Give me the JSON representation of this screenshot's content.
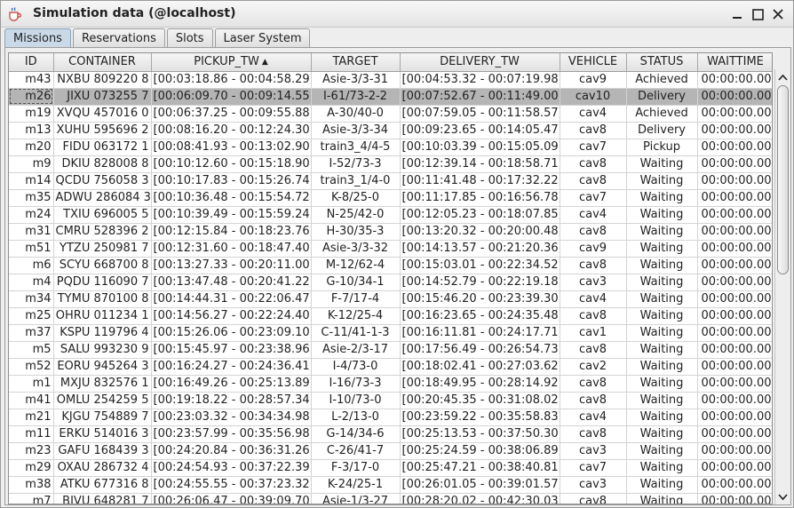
{
  "window": {
    "title": "Simulation data (@localhost)",
    "app_icon": "java-cup-icon",
    "controls": [
      "minimize-icon",
      "maximize-icon",
      "close-icon"
    ]
  },
  "tabs": [
    {
      "label": "Missions",
      "active": true
    },
    {
      "label": "Reservations",
      "active": false
    },
    {
      "label": "Slots",
      "active": false
    },
    {
      "label": "Laser System",
      "active": false
    }
  ],
  "table": {
    "columns": [
      "ID",
      "CONTAINER",
      "PICKUP_TW",
      "TARGET",
      "DELIVERY_TW",
      "VEHICLE",
      "STATUS",
      "WAITTIME"
    ],
    "sorted_column": "PICKUP_TW",
    "sort_icon": "sort-ascending-icon",
    "selected_row": 1,
    "rows": [
      [
        "m43",
        "NXBU 809220 8",
        "[00:03:18.86 - 00:04:58.29]",
        "Asie-3/3-31",
        "[00:04:53.32 - 00:07:19.98]",
        "cav9",
        "Achieved",
        "00:00:00.00"
      ],
      [
        "m26",
        "JIXU 073255 7",
        "[00:06:09.70 - 00:09:14.55]",
        "I-61/73-2-2",
        "[00:07:52.67 - 00:11:49.00]",
        "cav10",
        "Delivery",
        "00:00:00.00"
      ],
      [
        "m19",
        "XVQU 457016 0",
        "[00:06:37.25 - 00:09:55.88]",
        "A-30/40-0",
        "[00:07:59.05 - 00:11:58.57]",
        "cav4",
        "Achieved",
        "00:00:00.00"
      ],
      [
        "m13",
        "XUHU 595696 2",
        "[00:08:16.20 - 00:12:24.30]",
        "Asie-3/3-34",
        "[00:09:23.65 - 00:14:05.47]",
        "cav8",
        "Delivery",
        "00:00:00.00"
      ],
      [
        "m20",
        "FIDU 063172 1",
        "[00:08:41.93 - 00:13:02.90]",
        "train3_4/4-5",
        "[00:10:03.39 - 00:15:05.09]",
        "cav7",
        "Pickup",
        "00:00:00.00"
      ],
      [
        "m9",
        "DKIU 828008 8",
        "[00:10:12.60 - 00:15:18.90]",
        "I-52/73-3",
        "[00:12:39.14 - 00:18:58.71]",
        "cav8",
        "Waiting",
        "00:00:00.00"
      ],
      [
        "m14",
        "QCDU 756058 3",
        "[00:10:17.83 - 00:15:26.74]",
        "train3_1/4-0",
        "[00:11:41.48 - 00:17:32.22]",
        "cav8",
        "Waiting",
        "00:00:00.00"
      ],
      [
        "m35",
        "ADWU 286084 3",
        "[00:10:36.48 - 00:15:54.72]",
        "K-8/25-0",
        "[00:11:17.85 - 00:16:56.78]",
        "cav7",
        "Waiting",
        "00:00:00.00"
      ],
      [
        "m24",
        "TXIU 696005 5",
        "[00:10:39.49 - 00:15:59.24]",
        "N-25/42-0",
        "[00:12:05.23 - 00:18:07.85]",
        "cav4",
        "Waiting",
        "00:00:00.00"
      ],
      [
        "m31",
        "CMRU 528396 2",
        "[00:12:15.84 - 00:18:23.76]",
        "H-30/35-3",
        "[00:13:20.32 - 00:20:00.48]",
        "cav8",
        "Waiting",
        "00:00:00.00"
      ],
      [
        "m51",
        "YTZU 250981 7",
        "[00:12:31.60 - 00:18:47.40]",
        "Asie-3/3-32",
        "[00:14:13.57 - 00:21:20.36]",
        "cav9",
        "Waiting",
        "00:00:00.00"
      ],
      [
        "m6",
        "SCYU 668700 8",
        "[00:13:27.33 - 00:20:11.00]",
        "M-12/62-4",
        "[00:15:03.01 - 00:22:34.52]",
        "cav8",
        "Waiting",
        "00:00:00.00"
      ],
      [
        "m4",
        "PQDU 116090 7",
        "[00:13:47.48 - 00:20:41.22]",
        "G-10/34-1",
        "[00:14:52.79 - 00:22:19.18]",
        "cav3",
        "Waiting",
        "00:00:00.00"
      ],
      [
        "m34",
        "TYMU 870100 8",
        "[00:14:44.31 - 00:22:06.47]",
        "F-7/17-4",
        "[00:15:46.20 - 00:23:39.30]",
        "cav4",
        "Waiting",
        "00:00:00.00"
      ],
      [
        "m25",
        "OHRU 011234 1",
        "[00:14:56.27 - 00:22:24.40]",
        "K-12/25-4",
        "[00:16:23.65 - 00:24:35.48]",
        "cav8",
        "Waiting",
        "00:00:00.00"
      ],
      [
        "m37",
        "KSPU 119796 4",
        "[00:15:26.06 - 00:23:09.10]",
        "C-11/41-1-3",
        "[00:16:11.81 - 00:24:17.71]",
        "cav1",
        "Waiting",
        "00:00:00.00"
      ],
      [
        "m5",
        "SALU 993230 9",
        "[00:15:45.97 - 00:23:38.96]",
        "Asie-2/3-17",
        "[00:17:56.49 - 00:26:54.73]",
        "cav8",
        "Waiting",
        "00:00:00.00"
      ],
      [
        "m52",
        "EORU 945264 3",
        "[00:16:24.27 - 00:24:36.41]",
        "I-4/73-0",
        "[00:18:02.41 - 00:27:03.62]",
        "cav2",
        "Waiting",
        "00:00:00.00"
      ],
      [
        "m1",
        "MXJU 832576 1",
        "[00:16:49.26 - 00:25:13.89]",
        "I-16/73-3",
        "[00:18:49.95 - 00:28:14.92]",
        "cav8",
        "Waiting",
        "00:00:00.00"
      ],
      [
        "m41",
        "OMLU 254259 5",
        "[00:19:18.22 - 00:28:57.34]",
        "I-10/73-0",
        "[00:20:45.35 - 00:31:08.02]",
        "cav8",
        "Waiting",
        "00:00:00.00"
      ],
      [
        "m21",
        "KJGU 754889 7",
        "[00:23:03.32 - 00:34:34.98]",
        "L-2/13-0",
        "[00:23:59.22 - 00:35:58.83]",
        "cav4",
        "Waiting",
        "00:00:00.00"
      ],
      [
        "m11",
        "ERKU 514016 3",
        "[00:23:57.99 - 00:35:56.98]",
        "G-14/34-6",
        "[00:25:13.53 - 00:37:50.30]",
        "cav8",
        "Waiting",
        "00:00:00.00"
      ],
      [
        "m23",
        "GAFU 168439 3",
        "[00:24:20.84 - 00:36:31.26]",
        "C-26/41-7",
        "[00:25:24.59 - 00:38:06.89]",
        "cav3",
        "Waiting",
        "00:00:00.00"
      ],
      [
        "m29",
        "OXAU 286732 4",
        "[00:24:54.93 - 00:37:22.39]",
        "F-3/17-0",
        "[00:25:47.21 - 00:38:40.81]",
        "cav7",
        "Waiting",
        "00:00:00.00"
      ],
      [
        "m38",
        "ATKU 677316 8",
        "[00:24:55.55 - 00:37:23.32]",
        "K-24/25-1",
        "[00:26:01.05 - 00:39:01.57]",
        "cav3",
        "Waiting",
        "00:00:00.00"
      ],
      [
        "m7",
        "BIVU 648281 7",
        "[00:26:06.47 - 00:39:09.70]",
        "Asie-1/3-27",
        "[00:28:20.02 - 00:42:30.03]",
        "cav8",
        "Waiting",
        "00:00:00.00"
      ]
    ]
  },
  "scrollbar": {
    "position_fraction": 0.0,
    "visible_fraction": 0.47,
    "up_icon": "chevron-up-icon",
    "down_icon": "chevron-down-icon"
  }
}
